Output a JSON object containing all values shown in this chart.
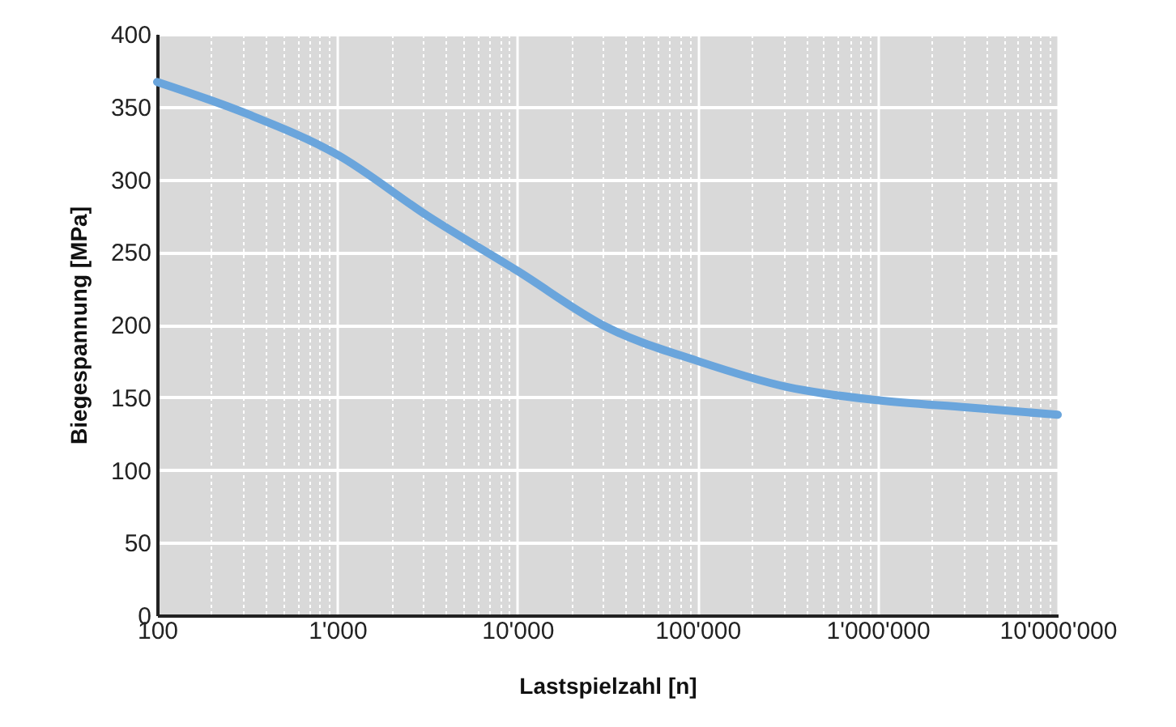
{
  "chart_data": {
    "type": "line",
    "xlabel": "Lastspielzahl [n]",
    "ylabel": "Biegespannung [MPa]",
    "x": [
      100,
      316,
      1000,
      3162,
      10000,
      31623,
      100000,
      316228,
      1000000,
      3162278,
      10000000
    ],
    "series": [
      {
        "color": "#6aa5dc",
        "values": [
          367,
          345,
          317,
          275,
          237,
          198,
          175,
          157,
          148,
          143,
          138
        ]
      }
    ],
    "log": "x",
    "xlim": [
      100,
      10000000
    ],
    "ylim": [
      0,
      400
    ],
    "xticks": [
      {
        "value": 100,
        "label": "100"
      },
      {
        "value": 1000,
        "label": "1'000"
      },
      {
        "value": 10000,
        "label": "10'000"
      },
      {
        "value": 100000,
        "label": "100'000"
      },
      {
        "value": 1000000,
        "label": "1'000'000"
      },
      {
        "value": 10000000,
        "label": "10'000'000"
      }
    ],
    "yticks": [
      0,
      50,
      100,
      150,
      200,
      250,
      300,
      350,
      400
    ],
    "grid": true,
    "line_style": "solid",
    "marker": "none"
  }
}
